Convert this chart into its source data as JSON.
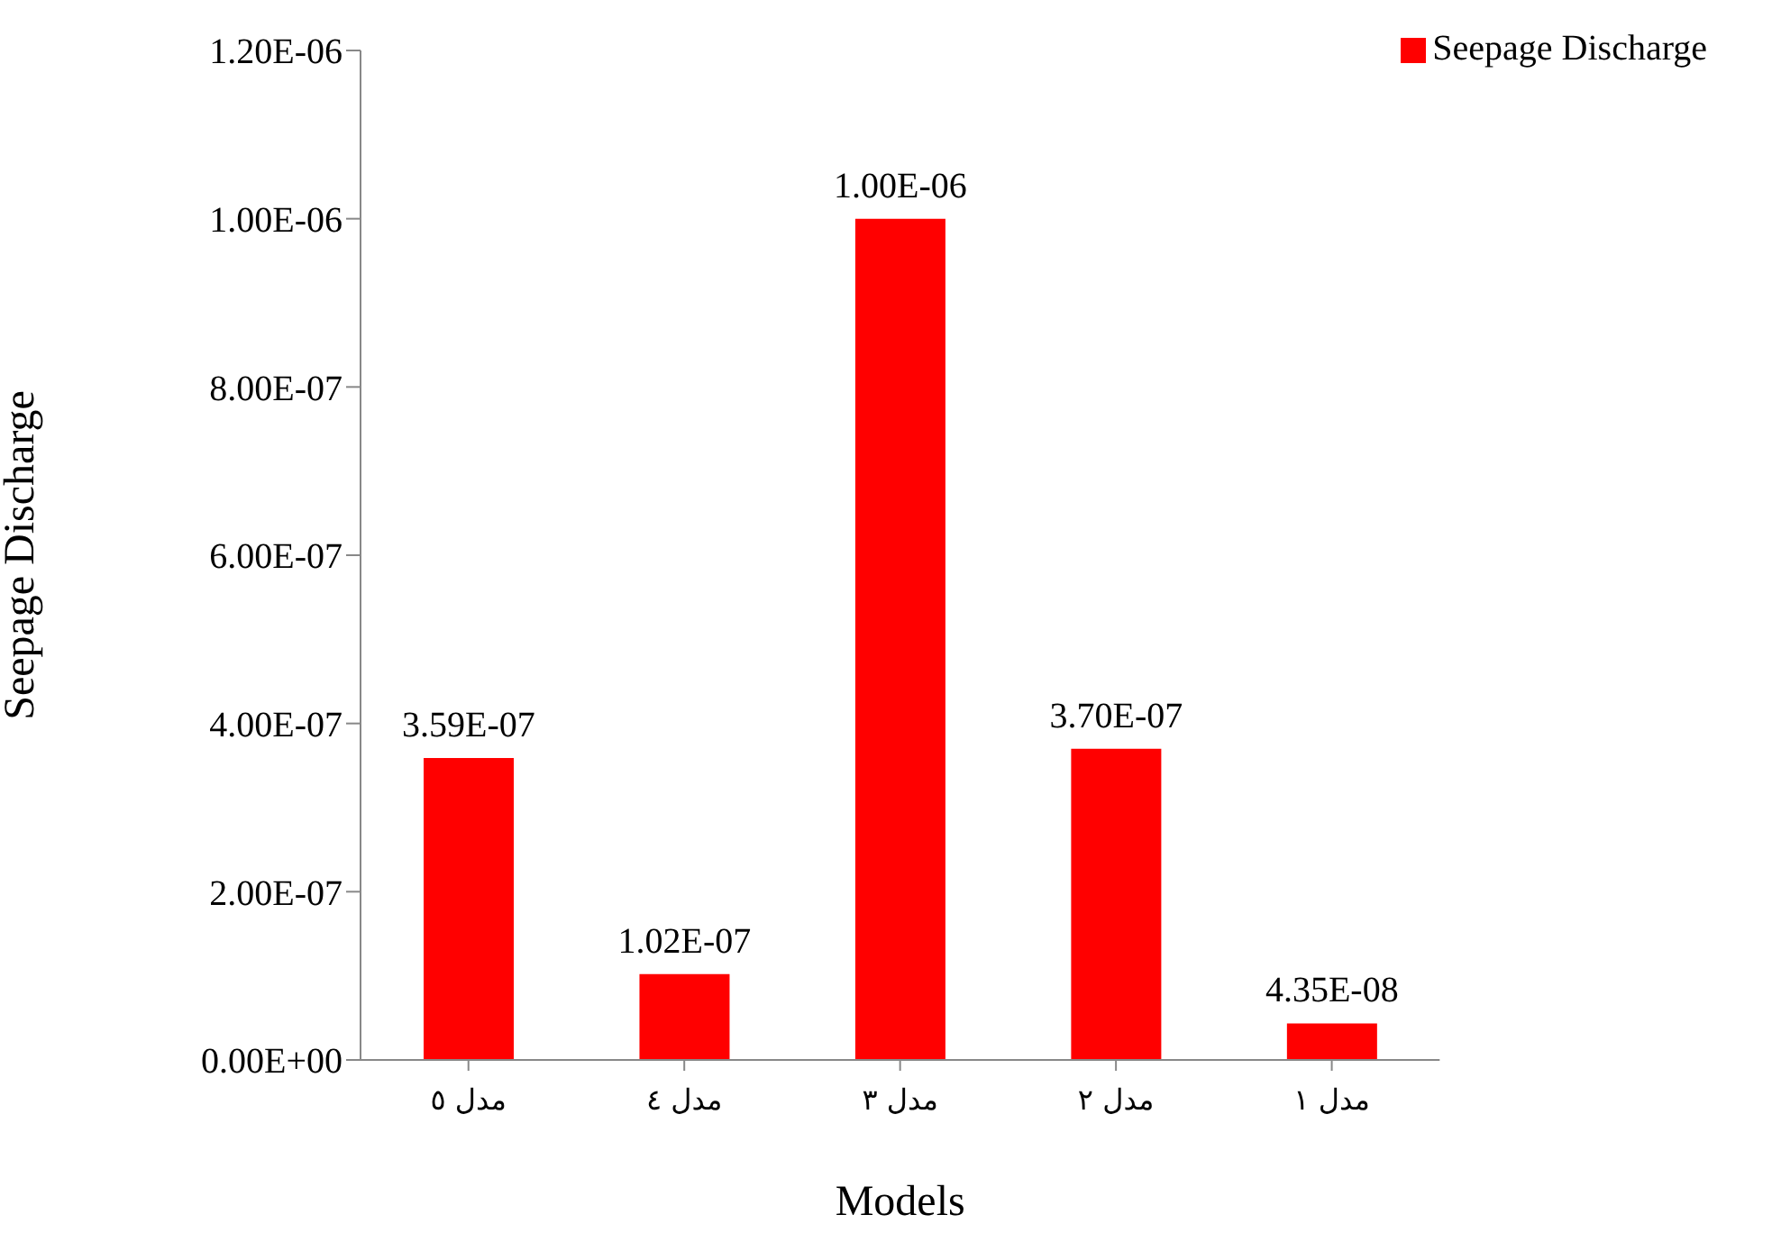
{
  "chart_data": {
    "type": "bar",
    "xlabel": "Models",
    "ylabel": "Seepage Discharge",
    "categories": [
      "مدل ٥",
      "مدل ٤",
      "مدل ٣",
      "مدل ٢",
      "مدل ١"
    ],
    "series": [
      {
        "name": "Seepage Discharge",
        "color": "#ff0000",
        "values": [
          3.59e-07,
          1.02e-07,
          1e-06,
          3.7e-07,
          4.35e-08
        ],
        "value_labels": [
          "3.59E-07",
          "1.02E-07",
          "1.00E-06",
          "3.70E-07",
          "4.35E-08"
        ]
      }
    ],
    "ylim": [
      0,
      1.2e-06
    ],
    "yticks": [
      {
        "value": 0,
        "label": "0.00E+00"
      },
      {
        "value": 2e-07,
        "label": "2.00E-07"
      },
      {
        "value": 4e-07,
        "label": "4.00E-07"
      },
      {
        "value": 6e-07,
        "label": "6.00E-07"
      },
      {
        "value": 8e-07,
        "label": "8.00E-07"
      },
      {
        "value": 1e-06,
        "label": "1.00E-06"
      },
      {
        "value": 1.2e-06,
        "label": "1.20E-06"
      }
    ],
    "grid": false,
    "legend": "top right"
  }
}
